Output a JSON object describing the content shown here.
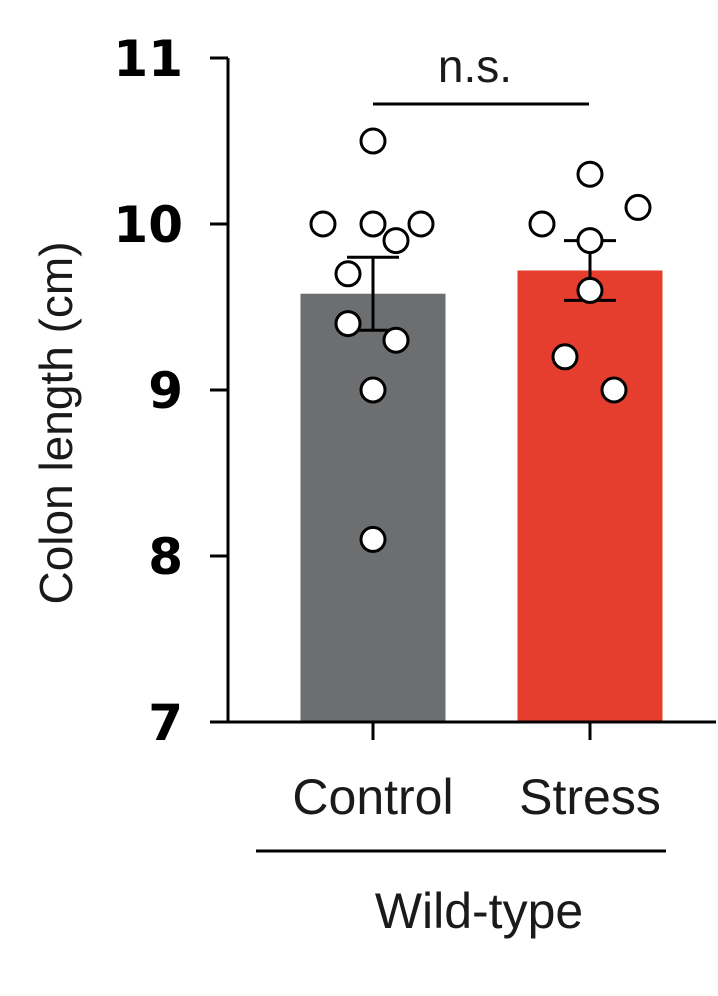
{
  "chart_data": {
    "type": "bar",
    "ylabel": "Colon length (cm)",
    "ylim": [
      7,
      11
    ],
    "yticks": [
      "7",
      "8",
      "9",
      "10",
      "11"
    ],
    "categories": [
      "Control",
      "Stress"
    ],
    "values": [
      9.58,
      9.72
    ],
    "sem": [
      0.22,
      0.18
    ],
    "colors": [
      "#6d6e70",
      "#e63e2e"
    ],
    "points": [
      [
        10.5,
        10.0,
        10.0,
        10.0,
        9.9,
        9.7,
        9.4,
        9.3,
        9.0,
        8.1
      ],
      [
        10.3,
        10.1,
        10.0,
        9.9,
        9.6,
        9.2,
        9.0
      ]
    ],
    "group_label": "Wild-type",
    "significance": "n.s.",
    "grid": false
  }
}
